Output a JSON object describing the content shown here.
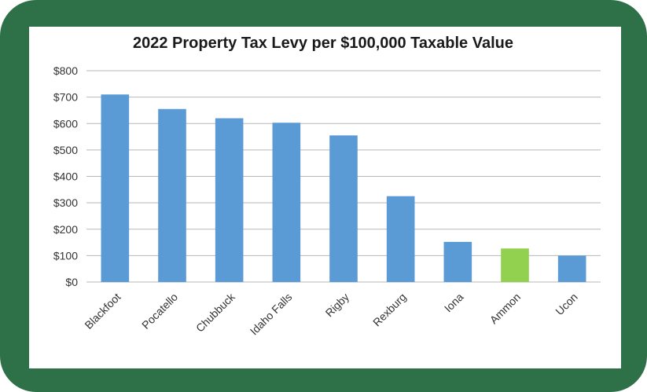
{
  "chart_data": {
    "type": "bar",
    "title": "2022 Property Tax Levy per $100,000 Taxable Value",
    "xlabel": "",
    "ylabel": "",
    "categories": [
      "Blackfoot",
      "Pocatello",
      "Chubbuck",
      "Idaho Falls",
      "Rigby",
      "Rexburg",
      "Iona",
      "Ammon",
      "Ucon"
    ],
    "values": [
      710,
      655,
      620,
      603,
      555,
      325,
      152,
      127,
      100
    ],
    "ylim": [
      0,
      800
    ],
    "yticks": [
      0,
      100,
      200,
      300,
      400,
      500,
      600,
      700,
      800
    ],
    "ytick_labels": [
      "$0",
      "$100",
      "$200",
      "$300",
      "$400",
      "$500",
      "$600",
      "$700",
      "$800"
    ],
    "grid": true,
    "legend": "none",
    "colors": {
      "default_bar": "#5b9bd5",
      "highlight_bar": "#92d050",
      "highlight_category": "Ammon",
      "gridline": "#b8b8b8",
      "frame": "#2e7048"
    }
  }
}
